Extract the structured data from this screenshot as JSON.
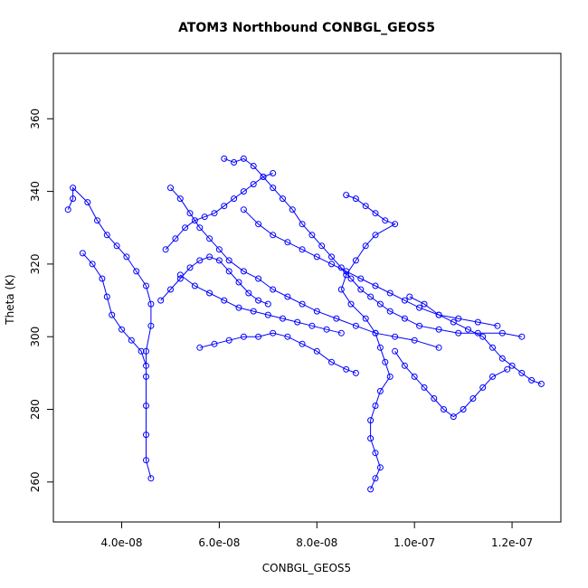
{
  "chart_data": {
    "type": "scatter",
    "title": "ATOM3 Northbound CONBGL_GEOS5",
    "xlabel": "CONBGL_GEOS5",
    "ylabel": "Theta (K)",
    "xlim": [
      2.6e-08,
      1.3e-07
    ],
    "ylim": [
      249,
      378
    ],
    "x_ticks": [
      4e-08,
      6e-08,
      8e-08,
      1e-07,
      1.2e-07
    ],
    "x_tick_labels": [
      "4.0e-08",
      "6.0e-08",
      "8.0e-08",
      "1.0e-07",
      "1.2e-07"
    ],
    "y_ticks": [
      260,
      280,
      300,
      320,
      340,
      360
    ],
    "y_tick_labels": [
      "260",
      "280",
      "300",
      "320",
      "340",
      "360"
    ],
    "grid": false,
    "marker": "open-circle",
    "color": "#0000ff",
    "series": [
      {
        "points": [
          [
            2.9e-08,
            335
          ],
          [
            3e-08,
            338
          ],
          [
            3e-08,
            341
          ],
          [
            3.3e-08,
            337
          ],
          [
            3.5e-08,
            332
          ],
          [
            3.7e-08,
            328
          ],
          [
            3.9e-08,
            325
          ],
          [
            4.1e-08,
            322
          ],
          [
            4.3e-08,
            318
          ],
          [
            4.5e-08,
            314
          ],
          [
            4.6e-08,
            309
          ],
          [
            4.6e-08,
            303
          ],
          [
            4.5e-08,
            296
          ],
          [
            4.5e-08,
            289
          ],
          [
            4.5e-08,
            281
          ],
          [
            4.5e-08,
            273
          ],
          [
            4.5e-08,
            266
          ],
          [
            4.6e-08,
            261
          ]
        ]
      },
      {
        "points": [
          [
            3.2e-08,
            323
          ],
          [
            3.4e-08,
            320
          ],
          [
            3.6e-08,
            316
          ],
          [
            3.7e-08,
            311
          ],
          [
            3.8e-08,
            306
          ],
          [
            4e-08,
            302
          ],
          [
            4.2e-08,
            299
          ],
          [
            4.4e-08,
            296
          ],
          [
            4.5e-08,
            292
          ]
        ]
      },
      {
        "points": [
          [
            5e-08,
            341
          ],
          [
            5.2e-08,
            338
          ],
          [
            5.4e-08,
            334
          ],
          [
            5.6e-08,
            330
          ],
          [
            5.8e-08,
            327
          ],
          [
            6e-08,
            324
          ],
          [
            6.2e-08,
            321
          ],
          [
            6.5e-08,
            318
          ],
          [
            6.8e-08,
            316
          ],
          [
            7.1e-08,
            313
          ],
          [
            7.4e-08,
            311
          ],
          [
            7.7e-08,
            309
          ],
          [
            8e-08,
            307
          ],
          [
            8.4e-08,
            305
          ],
          [
            8.8e-08,
            303
          ],
          [
            9.2e-08,
            301
          ],
          [
            9.6e-08,
            300
          ],
          [
            1e-07,
            299
          ],
          [
            1.05e-07,
            297
          ]
        ]
      },
      {
        "points": [
          [
            6.1e-08,
            349
          ],
          [
            6.3e-08,
            348
          ],
          [
            6.5e-08,
            349
          ],
          [
            6.7e-08,
            347
          ],
          [
            6.9e-08,
            344
          ],
          [
            7.1e-08,
            341
          ],
          [
            7.3e-08,
            338
          ],
          [
            7.5e-08,
            335
          ],
          [
            7.7e-08,
            331
          ],
          [
            7.9e-08,
            328
          ],
          [
            8.1e-08,
            325
          ],
          [
            8.3e-08,
            322
          ],
          [
            8.5e-08,
            319
          ],
          [
            8.7e-08,
            316
          ],
          [
            8.9e-08,
            313
          ],
          [
            9.1e-08,
            311
          ],
          [
            9.3e-08,
            309
          ],
          [
            9.5e-08,
            307
          ],
          [
            9.8e-08,
            305
          ],
          [
            1.01e-07,
            303
          ],
          [
            1.05e-07,
            302
          ],
          [
            1.09e-07,
            301
          ],
          [
            1.13e-07,
            301
          ],
          [
            1.18e-07,
            301
          ],
          [
            1.22e-07,
            300
          ]
        ]
      },
      {
        "points": [
          [
            8.6e-08,
            339
          ],
          [
            8.8e-08,
            338
          ],
          [
            9e-08,
            336
          ],
          [
            9.2e-08,
            334
          ],
          [
            9.4e-08,
            332
          ],
          [
            9.6e-08,
            331
          ],
          [
            9.2e-08,
            328
          ],
          [
            9e-08,
            325
          ],
          [
            8.8e-08,
            321
          ],
          [
            8.6e-08,
            317
          ],
          [
            8.5e-08,
            313
          ],
          [
            8.7e-08,
            309
          ],
          [
            9e-08,
            305
          ],
          [
            9.2e-08,
            301
          ],
          [
            9.3e-08,
            297
          ],
          [
            9.4e-08,
            293
          ],
          [
            9.5e-08,
            289
          ],
          [
            9.3e-08,
            285
          ],
          [
            9.2e-08,
            281
          ],
          [
            9.1e-08,
            277
          ],
          [
            9.1e-08,
            272
          ],
          [
            9.2e-08,
            268
          ],
          [
            9.3e-08,
            264
          ],
          [
            9.2e-08,
            261
          ],
          [
            9.1e-08,
            258
          ]
        ]
      },
      {
        "points": [
          [
            9.9e-08,
            311
          ],
          [
            1.02e-07,
            309
          ],
          [
            1.05e-07,
            306
          ],
          [
            1.08e-07,
            304
          ],
          [
            1.11e-07,
            302
          ],
          [
            1.14e-07,
            300
          ],
          [
            1.16e-07,
            297
          ],
          [
            1.18e-07,
            294
          ],
          [
            1.2e-07,
            292
          ],
          [
            1.22e-07,
            290
          ],
          [
            1.24e-07,
            288
          ],
          [
            1.26e-07,
            287
          ]
        ]
      },
      {
        "points": [
          [
            9.6e-08,
            296
          ],
          [
            9.8e-08,
            292
          ],
          [
            1e-07,
            289
          ],
          [
            1.02e-07,
            286
          ],
          [
            1.04e-07,
            283
          ],
          [
            1.06e-07,
            280
          ],
          [
            1.08e-07,
            278
          ],
          [
            1.1e-07,
            280
          ],
          [
            1.12e-07,
            283
          ],
          [
            1.14e-07,
            286
          ],
          [
            1.16e-07,
            289
          ],
          [
            1.19e-07,
            291
          ]
        ]
      },
      {
        "points": [
          [
            5.6e-08,
            297
          ],
          [
            5.9e-08,
            298
          ],
          [
            6.2e-08,
            299
          ],
          [
            6.5e-08,
            300
          ],
          [
            6.8e-08,
            300
          ],
          [
            7.1e-08,
            301
          ],
          [
            7.4e-08,
            300
          ],
          [
            7.7e-08,
            298
          ],
          [
            8e-08,
            296
          ],
          [
            8.3e-08,
            293
          ],
          [
            8.6e-08,
            291
          ],
          [
            8.8e-08,
            290
          ]
        ]
      },
      {
        "points": [
          [
            5.2e-08,
            317
          ],
          [
            5.5e-08,
            314
          ],
          [
            5.8e-08,
            312
          ],
          [
            6.1e-08,
            310
          ],
          [
            6.4e-08,
            308
          ],
          [
            6.7e-08,
            307
          ],
          [
            7e-08,
            306
          ],
          [
            7.3e-08,
            305
          ],
          [
            7.6e-08,
            304
          ],
          [
            7.9e-08,
            303
          ],
          [
            8.2e-08,
            302
          ],
          [
            8.5e-08,
            301
          ]
        ]
      },
      {
        "points": [
          [
            6.5e-08,
            335
          ],
          [
            6.8e-08,
            331
          ],
          [
            7.1e-08,
            328
          ],
          [
            7.4e-08,
            326
          ],
          [
            7.7e-08,
            324
          ],
          [
            8e-08,
            322
          ],
          [
            8.3e-08,
            320
          ],
          [
            8.6e-08,
            318
          ],
          [
            8.9e-08,
            316
          ],
          [
            9.2e-08,
            314
          ],
          [
            9.5e-08,
            312
          ],
          [
            9.8e-08,
            310
          ],
          [
            1.01e-07,
            308
          ],
          [
            1.05e-07,
            306
          ],
          [
            1.09e-07,
            305
          ],
          [
            1.13e-07,
            304
          ],
          [
            1.17e-07,
            303
          ]
        ]
      },
      {
        "points": [
          [
            4.9e-08,
            324
          ],
          [
            5.1e-08,
            327
          ],
          [
            5.3e-08,
            330
          ],
          [
            5.5e-08,
            332
          ],
          [
            5.7e-08,
            333
          ],
          [
            5.9e-08,
            334
          ],
          [
            6.1e-08,
            336
          ],
          [
            6.3e-08,
            338
          ],
          [
            6.5e-08,
            340
          ],
          [
            6.7e-08,
            342
          ],
          [
            6.9e-08,
            344
          ],
          [
            7.1e-08,
            345
          ]
        ]
      },
      {
        "points": [
          [
            4.8e-08,
            310
          ],
          [
            5e-08,
            313
          ],
          [
            5.2e-08,
            316
          ],
          [
            5.4e-08,
            319
          ],
          [
            5.6e-08,
            321
          ],
          [
            5.8e-08,
            322
          ],
          [
            6e-08,
            321
          ],
          [
            6.2e-08,
            318
          ],
          [
            6.4e-08,
            315
          ],
          [
            6.6e-08,
            312
          ],
          [
            6.8e-08,
            310
          ],
          [
            7e-08,
            309
          ]
        ]
      }
    ]
  }
}
